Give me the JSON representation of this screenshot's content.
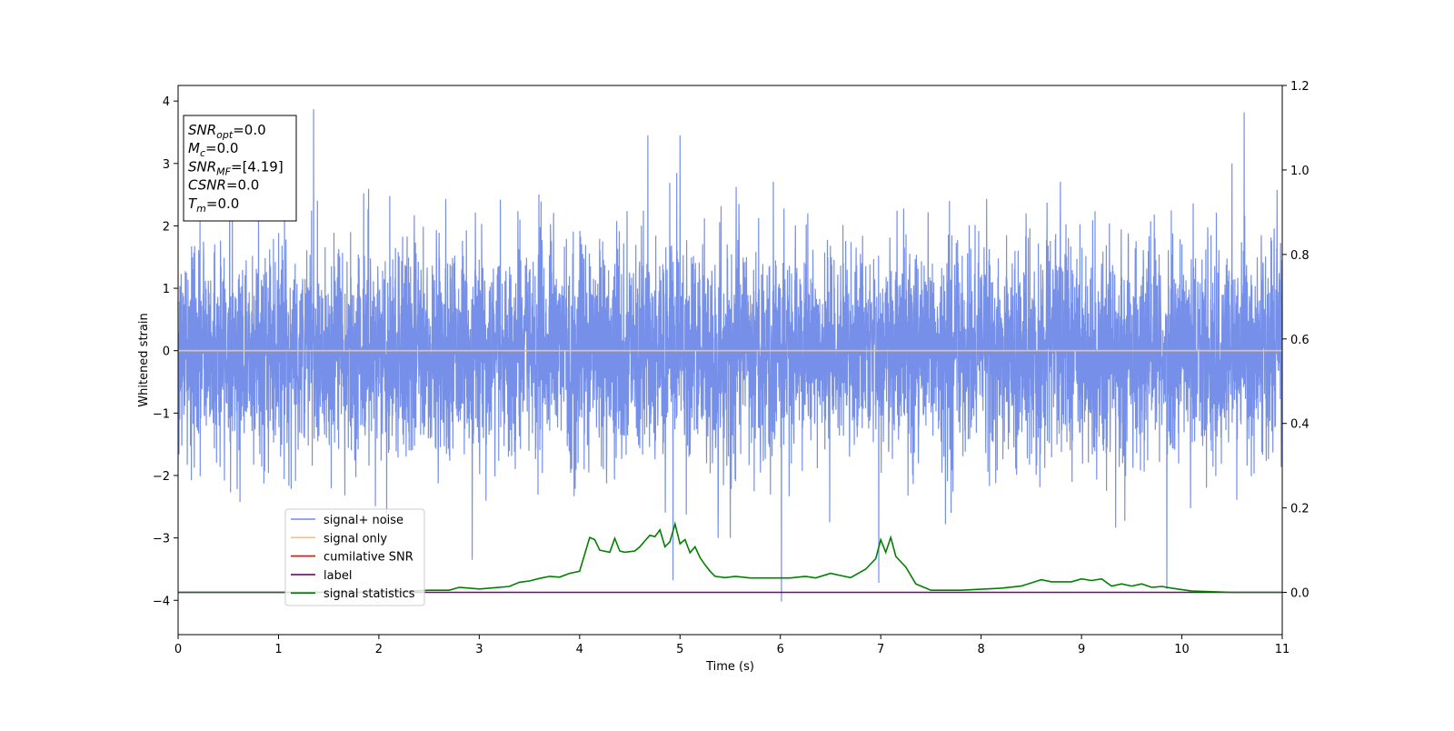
{
  "chart_data": {
    "type": "line",
    "xlabel": "Time (s)",
    "ylabel": "Whitened strain",
    "xlim": [
      0,
      11
    ],
    "ylim": [
      -4.55,
      4.25
    ],
    "y2lim": [
      -0.1,
      1.2
    ],
    "x_ticks": [
      0,
      1,
      2,
      3,
      4,
      5,
      6,
      7,
      8,
      9,
      10,
      11
    ],
    "y_ticks": [
      -4,
      -3,
      -2,
      -1,
      0,
      1,
      2,
      3,
      4
    ],
    "y2_ticks": [
      "0.0",
      "0.2",
      "0.4",
      "0.6",
      "0.8",
      "1.0",
      "1.2"
    ],
    "x_tick_labels": [
      "0",
      "1",
      "2",
      "3",
      "4",
      "5",
      "6",
      "7",
      "8",
      "9",
      "10",
      "11"
    ],
    "y_tick_labels": [
      "−4",
      "−3",
      "−2",
      "−1",
      "0",
      "1",
      "2",
      "3",
      "4"
    ],
    "grid": false,
    "legend_placement": "lower-left",
    "info_box": {
      "placement": "top-left",
      "lines": [
        {
          "sym": "SNR",
          "sub": "opt",
          "rest": "=0.0"
        },
        {
          "sym": "M",
          "sub": "c",
          "rest": "=0.0"
        },
        {
          "sym": "SNR",
          "sub": "MF",
          "rest": "=[4.19]"
        },
        {
          "sym": "CSNR",
          "sub": "",
          "rest": "=0.0"
        },
        {
          "sym": "T",
          "sub": "m",
          "rest": "=0.0"
        }
      ]
    },
    "series": [
      {
        "name": "signal+ noise",
        "color": "#6f8ae8",
        "axis": "left",
        "kind": "noise",
        "typical_amplitude": 1.1,
        "extremes": [
          [
            1.35,
            3.87
          ],
          [
            10.62,
            3.82
          ],
          [
            6.01,
            -4.02
          ],
          [
            9.85,
            -3.82
          ],
          [
            2.93,
            -3.35
          ],
          [
            4.93,
            -3.68
          ],
          [
            6.98,
            -3.72
          ],
          [
            4.68,
            3.45
          ],
          [
            5.0,
            3.45
          ]
        ]
      },
      {
        "name": "signal only",
        "color": "#f2c27a",
        "axis": "left",
        "x": [
          0,
          11
        ],
        "values": [
          0,
          0
        ]
      },
      {
        "name": "cumilative SNR",
        "color": "#ff0000",
        "axis": "left",
        "x": [],
        "values": []
      },
      {
        "name": "label",
        "color": "#800080",
        "axis": "right",
        "x": [
          0,
          11
        ],
        "values": [
          0,
          0
        ]
      },
      {
        "name": "signal statistics",
        "color": "#008000",
        "axis": "right",
        "x": [
          0,
          0.5,
          1.0,
          1.5,
          2.0,
          2.5,
          2.7,
          2.8,
          3.0,
          3.1,
          3.3,
          3.4,
          3.5,
          3.6,
          3.7,
          3.8,
          3.9,
          4.0,
          4.1,
          4.15,
          4.2,
          4.3,
          4.35,
          4.4,
          4.45,
          4.55,
          4.6,
          4.65,
          4.7,
          4.75,
          4.8,
          4.85,
          4.9,
          4.95,
          5.0,
          5.05,
          5.1,
          5.15,
          5.2,
          5.25,
          5.3,
          5.35,
          5.45,
          5.55,
          5.7,
          5.9,
          6.1,
          6.25,
          6.35,
          6.5,
          6.6,
          6.7,
          6.85,
          6.95,
          7.0,
          7.05,
          7.1,
          7.15,
          7.25,
          7.35,
          7.5,
          7.8,
          8.2,
          8.4,
          8.6,
          8.7,
          8.9,
          9.0,
          9.1,
          9.2,
          9.3,
          9.4,
          9.5,
          9.6,
          9.7,
          9.8,
          9.9,
          10.1,
          10.5,
          11.0
        ],
        "values": [
          0.0,
          0.0,
          0.0,
          0.0,
          0.0,
          0.005,
          0.005,
          0.012,
          0.008,
          0.01,
          0.014,
          0.024,
          0.027,
          0.033,
          0.038,
          0.036,
          0.045,
          0.05,
          0.13,
          0.125,
          0.1,
          0.095,
          0.128,
          0.098,
          0.095,
          0.098,
          0.108,
          0.122,
          0.135,
          0.132,
          0.148,
          0.108,
          0.12,
          0.162,
          0.115,
          0.125,
          0.094,
          0.108,
          0.082,
          0.065,
          0.05,
          0.038,
          0.035,
          0.038,
          0.034,
          0.034,
          0.034,
          0.038,
          0.034,
          0.045,
          0.04,
          0.035,
          0.055,
          0.08,
          0.125,
          0.095,
          0.13,
          0.085,
          0.06,
          0.02,
          0.005,
          0.005,
          0.01,
          0.015,
          0.03,
          0.025,
          0.025,
          0.032,
          0.028,
          0.032,
          0.015,
          0.02,
          0.015,
          0.02,
          0.012,
          0.014,
          0.01,
          0.003,
          0.0,
          0.0
        ]
      }
    ]
  }
}
